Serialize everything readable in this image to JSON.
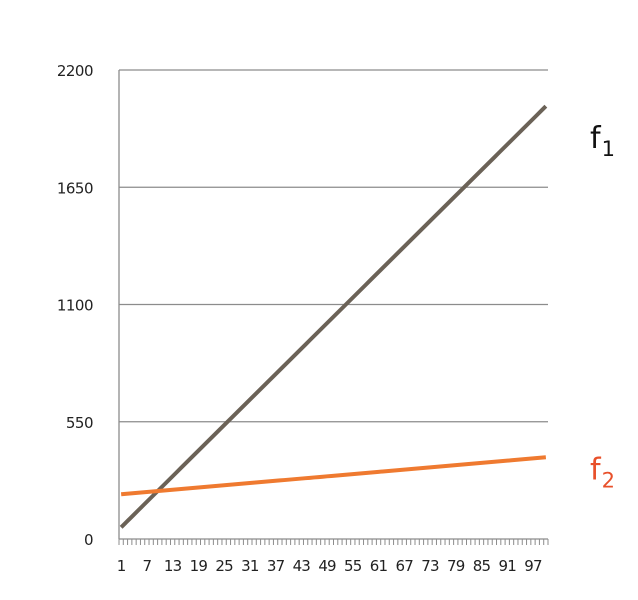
{
  "chart_data": {
    "type": "line",
    "title": "",
    "xlabel": "",
    "ylabel": "",
    "x": {
      "start": 1,
      "end": 100,
      "step": 1
    },
    "x_tick_labels": [
      "1",
      "7",
      "13",
      "19",
      "25",
      "31",
      "37",
      "43",
      "49",
      "55",
      "61",
      "67",
      "73",
      "79",
      "85",
      "91",
      "97"
    ],
    "y_ticks": [
      0,
      550,
      1100,
      1650,
      2200
    ],
    "y_tick_labels": [
      "0",
      "550",
      "1100",
      "1650",
      "2200"
    ],
    "ylim": [
      0,
      2200
    ],
    "grid": "horizontal",
    "series": [
      {
        "name": "f",
        "subscript": "1",
        "color": "#6b6257",
        "label_color": "#111111",
        "intercept": 55,
        "slope": 19.95
      },
      {
        "name": "f",
        "subscript": "2",
        "color": "#ef7a30",
        "label_color": "#e8502a",
        "intercept": 210,
        "slope": 1.75
      }
    ]
  }
}
